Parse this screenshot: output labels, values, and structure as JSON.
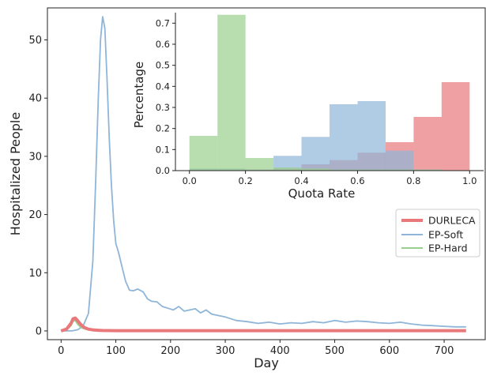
{
  "chart_data": [
    {
      "type": "line",
      "xlabel": "Day",
      "ylabel": "Hospitalized People",
      "xlim": [
        -25,
        775
      ],
      "ylim": [
        -1.5,
        55.5
      ],
      "xticks": [
        0,
        100,
        200,
        300,
        400,
        500,
        600,
        700
      ],
      "yticks": [
        0,
        10,
        20,
        30,
        40,
        50
      ],
      "legend": "right, below inset",
      "series": [
        {
          "name": "DURLECA",
          "color": "#e8787a",
          "x": [
            0,
            10,
            18,
            22,
            26,
            30,
            36,
            42,
            50,
            60,
            75,
            100,
            200,
            400,
            600,
            740
          ],
          "y": [
            0,
            0.3,
            1.3,
            2.1,
            2.2,
            1.8,
            1.1,
            0.6,
            0.3,
            0.15,
            0.08,
            0.05,
            0.05,
            0.05,
            0.05,
            0.05
          ]
        },
        {
          "name": "EP-Soft",
          "color": "#8fb5d8",
          "x": [
            0,
            20,
            30,
            40,
            50,
            58,
            63,
            68,
            72,
            76,
            80,
            84,
            88,
            92,
            96,
            100,
            105,
            110,
            118,
            125,
            132,
            140,
            150,
            158,
            165,
            175,
            185,
            195,
            205,
            215,
            225,
            235,
            245,
            255,
            265,
            275,
            285,
            300,
            320,
            340,
            360,
            380,
            400,
            420,
            440,
            460,
            480,
            500,
            520,
            540,
            560,
            580,
            600,
            620,
            640,
            660,
            680,
            700,
            720,
            740
          ],
          "y": [
            0,
            0,
            0.2,
            0.8,
            3,
            12,
            25,
            40,
            50,
            54,
            52,
            43,
            33,
            25,
            19,
            15,
            13.5,
            11.5,
            8.5,
            7,
            6.9,
            7.2,
            6.7,
            5.5,
            5.1,
            5,
            4.2,
            3.9,
            3.6,
            4.2,
            3.4,
            3.6,
            3.8,
            3.1,
            3.6,
            2.9,
            2.7,
            2.4,
            1.8,
            1.6,
            1.3,
            1.5,
            1.2,
            1.4,
            1.3,
            1.6,
            1.4,
            1.8,
            1.5,
            1.7,
            1.6,
            1.4,
            1.3,
            1.5,
            1.2,
            1.0,
            0.9,
            0.8,
            0.7,
            0.7
          ]
        },
        {
          "name": "EP-Hard",
          "color": "#9ad08f",
          "x": [
            0,
            10,
            18,
            22,
            26,
            30,
            36,
            45,
            60,
            80,
            100,
            140
          ],
          "y": [
            0,
            0.2,
            0.9,
            1.7,
            1.8,
            1.2,
            0.6,
            0.3,
            0.1,
            0.05,
            0,
            0
          ]
        }
      ]
    },
    {
      "type": "bar",
      "subtype": "histogram",
      "xlabel": "Quota Rate",
      "ylabel": "Percentage",
      "xlim": [
        -0.05,
        1.05
      ],
      "ylim": [
        0,
        0.75
      ],
      "xticks": [
        0.0,
        0.2,
        0.4,
        0.6,
        0.8,
        1.0
      ],
      "yticks": [
        0.0,
        0.1,
        0.2,
        0.3,
        0.4,
        0.5,
        0.6,
        0.7
      ],
      "bin_edges": [
        0.0,
        0.1,
        0.2,
        0.3,
        0.4,
        0.5,
        0.6,
        0.7,
        0.8,
        0.9,
        1.0
      ],
      "series": [
        {
          "name": "DURLECA",
          "color": "#e8787a",
          "values": [
            0.005,
            0.005,
            0.005,
            0.01,
            0.03,
            0.05,
            0.085,
            0.135,
            0.255,
            0.42
          ]
        },
        {
          "name": "EP-Soft",
          "color": "#8fb5d8",
          "values": [
            0.01,
            0.01,
            0.005,
            0.07,
            0.16,
            0.315,
            0.33,
            0.095,
            0.005,
            0
          ]
        },
        {
          "name": "EP-Hard",
          "color": "#9ad08f",
          "values": [
            0.165,
            0.74,
            0.06,
            0.015,
            0.01,
            0.005,
            0.005,
            0.005,
            0.005,
            0
          ]
        }
      ]
    }
  ]
}
